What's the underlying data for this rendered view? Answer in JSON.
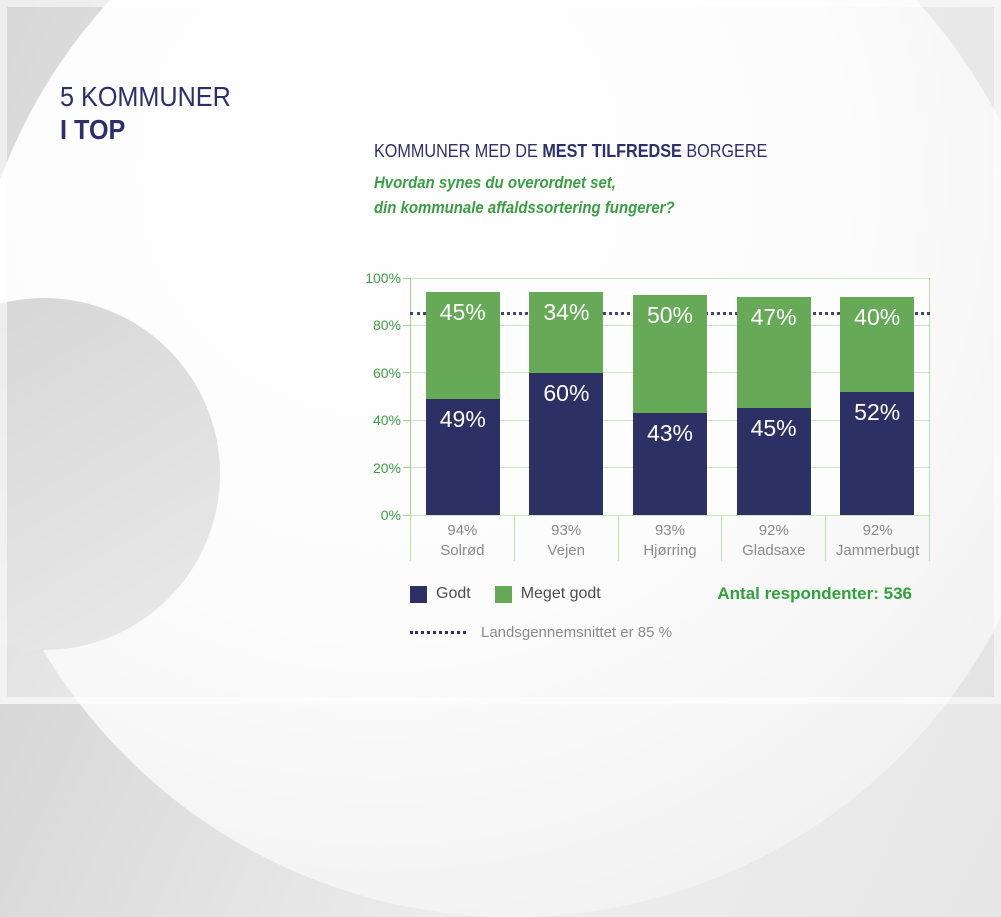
{
  "slide": {
    "title_line1": "5 KOMMUNER",
    "title_line2": "I TOP"
  },
  "heading": {
    "prefix": "KOMMUNER MED DE ",
    "bold": "MEST TILFREDSE",
    "suffix": " BORGERE"
  },
  "question": {
    "line1": "Hvordan synes du overordnet set,",
    "line2": "din kommunale affaldssortering fungerer?"
  },
  "chart_data": {
    "type": "bar",
    "stacked": true,
    "categories": [
      "Solrød",
      "Vejen",
      "Hjørring",
      "Gladsaxe",
      "Jammerbugt"
    ],
    "category_totals": [
      "94%",
      "93%",
      "93%",
      "92%",
      "92%"
    ],
    "series": [
      {
        "name": "Godt",
        "color": "#2d3064",
        "values": [
          49,
          60,
          43,
          45,
          52
        ]
      },
      {
        "name": "Meget godt",
        "color": "#66aa58",
        "values": [
          45,
          34,
          50,
          47,
          40
        ]
      }
    ],
    "value_label_suffix": "%",
    "title": "",
    "xlabel": "",
    "ylabel": "",
    "ylim": [
      0,
      100
    ],
    "yticks": [
      "0%",
      "20%",
      "40%",
      "60%",
      "80%",
      "100%"
    ],
    "grid": true,
    "legend_position": "bottom-left",
    "reference_line": {
      "value": 85,
      "style": "dotted",
      "color": "#2d3064",
      "label": "Landsgennemsnittet er 85 %"
    }
  },
  "footnotes": {
    "respondents": "Antal respondenter: 536",
    "national_average": "Landsgennemsnittet er 85 %"
  },
  "colors": {
    "navy": "#2d3064",
    "green_bar": "#66aa58",
    "green_text": "#3a9e43",
    "green_bright": "#2fa23b",
    "axis_green": "#a3cf95",
    "grid_green": "#cde4c1",
    "gray_text": "#8a8a8a"
  }
}
